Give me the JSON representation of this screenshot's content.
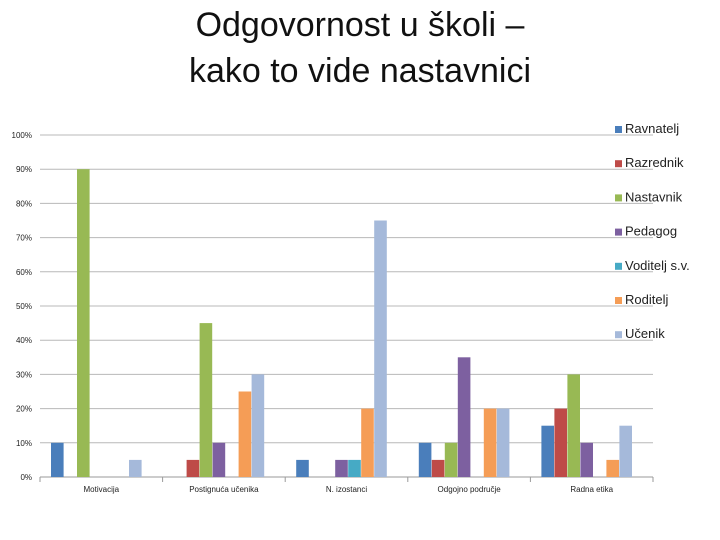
{
  "title_lines": [
    "Odgovornost u školi –",
    "kako to vide nastavnici"
  ],
  "chart_data": {
    "type": "bar",
    "categories": [
      "Motivacija",
      "Postignuća učenika",
      "N. izostanci",
      "Odgojno područje",
      "Radna etika"
    ],
    "series": [
      {
        "name": "Ravnatelj",
        "color": "#4a7ebb",
        "values": [
          10,
          0,
          5,
          10,
          15
        ]
      },
      {
        "name": "Razrednik",
        "color": "#be4b48",
        "values": [
          0,
          5,
          0,
          5,
          20
        ]
      },
      {
        "name": "Nastavnik",
        "color": "#98b954",
        "values": [
          90,
          45,
          0,
          10,
          30
        ]
      },
      {
        "name": "Pedagog",
        "color": "#7d60a0",
        "values": [
          0,
          10,
          5,
          35,
          10
        ]
      },
      {
        "name": "Voditelj s.v.",
        "color": "#46aac5",
        "values": [
          0,
          0,
          5,
          0,
          0
        ]
      },
      {
        "name": "Roditelj",
        "color": "#f59d56",
        "values": [
          0,
          25,
          20,
          20,
          5
        ]
      },
      {
        "name": "Učenik",
        "color": "#a5b9da",
        "values": [
          5,
          30,
          75,
          20,
          15
        ]
      }
    ],
    "yticks": [
      "0%",
      "10%",
      "20%",
      "30%",
      "40%",
      "50%",
      "60%",
      "70%",
      "80%",
      "90%",
      "100%"
    ],
    "ylim": [
      0,
      100
    ],
    "grid": true,
    "legend": "right"
  }
}
